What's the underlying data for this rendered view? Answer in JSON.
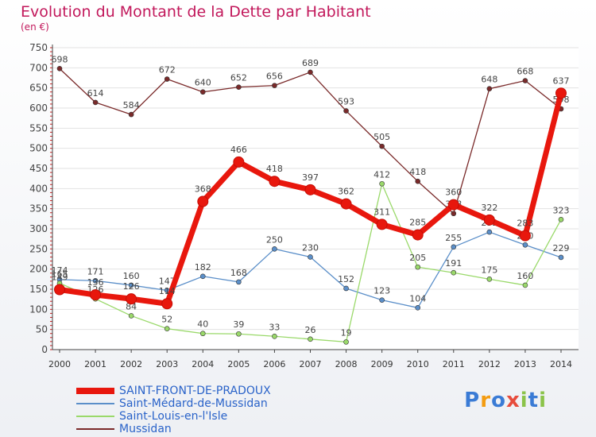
{
  "title": "Evolution du Montant de la Dette par Habitant",
  "unit": "(en €)",
  "logo": {
    "letters": [
      "P",
      "r",
      "o",
      "x",
      "i",
      "t",
      "i"
    ],
    "colors": [
      "#3a7bd5",
      "#f39c12",
      "#3a7bd5",
      "#e74c3c",
      "#8bc34a",
      "#3a7bd5",
      "#8bc34a"
    ]
  },
  "chart_data": {
    "type": "line",
    "categories": [
      "2000",
      "2001",
      "2002",
      "2003",
      "2004",
      "2005",
      "2006",
      "2007",
      "2008",
      "2009",
      "2010",
      "2011",
      "2012",
      "2013",
      "2014"
    ],
    "ylim": [
      0,
      750
    ],
    "yticks": [
      "0",
      "50",
      "100",
      "150",
      "200",
      "250",
      "300",
      "350",
      "400",
      "450",
      "500",
      "550",
      "600",
      "650",
      "700",
      "750"
    ],
    "grid": "horizontal",
    "series": [
      {
        "name": "Mussidan",
        "color": "#7a2a2a",
        "values": [
          698,
          614,
          584,
          672,
          640,
          652,
          656,
          689,
          593,
          505,
          418,
          338,
          648,
          668,
          598
        ],
        "labels": [
          "698",
          "614",
          "584",
          "672",
          "640",
          "652",
          "656",
          "689",
          "593",
          "505",
          "418",
          "338",
          "648",
          "668",
          "598"
        ]
      },
      {
        "name": "Saint-Médard-de-Mussidan",
        "color": "#5b8fc9",
        "values": [
          174,
          171,
          160,
          147,
          182,
          168,
          250,
          230,
          152,
          123,
          104,
          255,
          292,
          260,
          229
        ],
        "labels": [
          "174",
          "171",
          "160",
          "147",
          "182",
          "168",
          "250",
          "230",
          "152",
          "123",
          "104",
          "255",
          "292",
          "260",
          "229"
        ]
      },
      {
        "name": "Saint-Louis-en-l'Isle",
        "color": "#9ad96a",
        "values": [
          165,
          126,
          84,
          52,
          40,
          39,
          33,
          26,
          19,
          412,
          205,
          191,
          175,
          160,
          323
        ],
        "labels": [
          "165",
          "126",
          "84",
          "52",
          "40",
          "39",
          "33",
          "26",
          "19",
          "412",
          "205",
          "191",
          "175",
          "160",
          "323"
        ]
      },
      {
        "name": "SAINT-FRONT-DE-PRADOUX",
        "color": "#e8170d",
        "values": [
          149,
          136,
          126,
          114,
          368,
          466,
          418,
          397,
          362,
          311,
          285,
          360,
          322,
          283,
          637
        ],
        "labels": [
          "149",
          "136",
          "126",
          "114",
          "368",
          "466",
          "418",
          "397",
          "362",
          "311",
          "285",
          "360",
          "322",
          "283",
          "637"
        ]
      }
    ],
    "legend": [
      "SAINT-FRONT-DE-PRADOUX",
      "Saint-Médard-de-Mussidan",
      "Saint-Louis-en-l'Isle",
      "Mussidan"
    ]
  }
}
